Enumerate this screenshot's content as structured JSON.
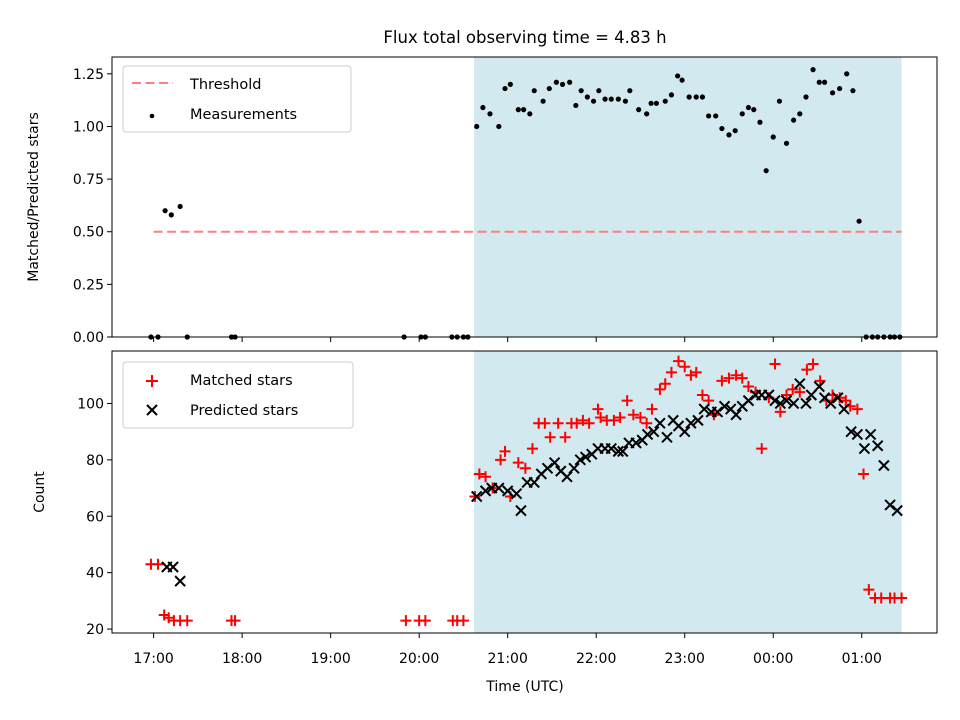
{
  "title": "Flux total observing time = 4.83 h",
  "x_ticks": [
    {
      "t": 17.0,
      "label": "17:00"
    },
    {
      "t": 18.0,
      "label": "18:00"
    },
    {
      "t": 19.0,
      "label": "19:00"
    },
    {
      "t": 20.0,
      "label": "20:00"
    },
    {
      "t": 21.0,
      "label": "21:00"
    },
    {
      "t": 22.0,
      "label": "22:00"
    },
    {
      "t": 23.0,
      "label": "23:00"
    },
    {
      "t": 24.0,
      "label": "00:00"
    },
    {
      "t": 25.0,
      "label": "01:00"
    }
  ],
  "colors": {
    "threshold": "#ff7f7f",
    "measure": "#000000",
    "matched": "#ff0000",
    "predicted": "#000000",
    "shade": "#d2e9f0"
  },
  "chart_data": [
    {
      "type": "scatter",
      "ylabel": "Matched/Predicted stars",
      "xlim": [
        16.53,
        25.85
      ],
      "ylim": [
        0.0,
        1.33
      ],
      "yticks": [
        0.0,
        0.25,
        0.5,
        0.75,
        1.0,
        1.25
      ],
      "ytick_labels": [
        "0.00",
        "0.25",
        "0.50",
        "0.75",
        "1.00",
        "1.25"
      ],
      "shaded_region": [
        20.62,
        25.45
      ],
      "threshold": {
        "name": "Threshold",
        "y": 0.5,
        "x": [
          17.0,
          25.45
        ]
      },
      "legend": [
        "Threshold",
        "Measurements"
      ],
      "series": [
        {
          "name": "Measurements",
          "x": [
            16.97,
            17.05,
            17.13,
            17.2,
            17.3,
            17.38,
            17.88,
            17.92,
            19.83,
            20.02,
            20.07,
            20.37,
            20.43,
            20.5,
            20.55,
            20.65,
            20.72,
            20.8,
            20.9,
            20.97,
            21.03,
            21.12,
            21.18,
            21.25,
            21.3,
            21.4,
            21.47,
            21.55,
            21.62,
            21.7,
            21.77,
            21.83,
            21.9,
            21.97,
            22.03,
            22.1,
            22.17,
            22.25,
            22.33,
            22.38,
            22.48,
            22.57,
            22.62,
            22.68,
            22.78,
            22.85,
            22.92,
            22.97,
            23.05,
            23.13,
            23.2,
            23.27,
            23.35,
            23.42,
            23.5,
            23.57,
            23.65,
            23.72,
            23.78,
            23.85,
            23.92,
            24.0,
            24.07,
            24.15,
            24.23,
            24.3,
            24.37,
            24.45,
            24.52,
            24.58,
            24.67,
            24.75,
            24.83,
            24.9,
            24.97,
            25.05,
            25.12,
            25.18,
            25.25,
            25.32,
            25.37,
            25.43,
            25.52
          ],
          "y": [
            0.0,
            0.0,
            0.6,
            0.58,
            0.62,
            0.0,
            0.0,
            0.0,
            0.0,
            0.0,
            0.0,
            0.0,
            0.0,
            0.0,
            0.0,
            1.0,
            1.09,
            1.06,
            1.0,
            1.18,
            1.2,
            1.08,
            1.08,
            1.06,
            1.17,
            1.12,
            1.18,
            1.21,
            1.2,
            1.21,
            1.1,
            1.17,
            1.14,
            1.12,
            1.17,
            1.13,
            1.13,
            1.13,
            1.12,
            1.17,
            1.08,
            1.06,
            1.11,
            1.11,
            1.12,
            1.15,
            1.24,
            1.22,
            1.14,
            1.14,
            1.14,
            1.05,
            1.05,
            0.99,
            0.96,
            0.98,
            1.06,
            1.09,
            1.08,
            1.02,
            0.79,
            0.95,
            1.12,
            0.92,
            1.03,
            1.06,
            1.14,
            1.27,
            1.21,
            1.21,
            1.16,
            1.18,
            1.25,
            1.17,
            0.55,
            0.0,
            0.0,
            0.0,
            0.0,
            0.0,
            0.0,
            0.0,
            0.0
          ]
        }
      ]
    },
    {
      "type": "scatter",
      "xlabel": "Time (UTC)",
      "ylabel": "Count",
      "xlim": [
        16.53,
        25.85
      ],
      "ylim": [
        18.6,
        118.6
      ],
      "yticks": [
        20,
        40,
        60,
        80,
        100
      ],
      "ytick_labels": [
        "20",
        "40",
        "60",
        "80",
        "100"
      ],
      "shaded_region": [
        20.62,
        25.45
      ],
      "legend": [
        "Matched stars",
        "Predicted stars"
      ],
      "series": [
        {
          "name": "Matched stars",
          "x": [
            16.97,
            17.05,
            17.12,
            17.17,
            17.23,
            17.3,
            17.38,
            17.88,
            17.92,
            19.85,
            20.0,
            20.07,
            20.38,
            20.43,
            20.5,
            20.63,
            20.68,
            20.75,
            20.83,
            20.92,
            20.97,
            21.03,
            21.12,
            21.2,
            21.28,
            21.35,
            21.42,
            21.48,
            21.57,
            21.65,
            21.72,
            21.78,
            21.85,
            21.92,
            22.02,
            22.05,
            22.12,
            22.2,
            22.27,
            22.35,
            22.42,
            22.5,
            22.57,
            22.63,
            22.72,
            22.78,
            22.85,
            22.93,
            23.0,
            23.07,
            23.13,
            23.2,
            23.27,
            23.33,
            23.42,
            23.5,
            23.58,
            23.65,
            23.72,
            23.8,
            23.87,
            23.95,
            24.02,
            24.08,
            24.15,
            24.22,
            24.3,
            24.38,
            24.45,
            24.53,
            24.6,
            24.67,
            24.75,
            24.82,
            24.87,
            24.95,
            25.02,
            25.08,
            25.15,
            25.22,
            25.32,
            25.37,
            25.45
          ],
          "y": [
            43,
            43,
            25,
            24,
            23,
            23,
            23,
            23,
            23,
            23,
            23,
            23,
            23,
            23,
            23,
            67,
            75,
            74,
            70,
            80,
            83,
            67,
            79,
            77,
            84,
            93,
            93,
            88,
            93,
            88,
            93,
            93,
            94,
            93,
            98,
            95,
            94,
            94,
            95,
            101,
            96,
            95,
            93,
            98,
            105,
            107,
            111,
            115,
            113,
            110,
            111,
            103,
            101,
            96,
            108,
            109,
            110,
            109,
            106,
            104,
            84,
            102,
            114,
            97,
            103,
            105,
            104,
            112,
            114,
            108,
            101,
            103,
            102,
            101,
            99,
            98,
            75,
            34,
            31,
            31,
            31,
            31,
            31
          ]
        },
        {
          "name": "Predicted stars",
          "x": [
            17.15,
            17.22,
            17.3,
            20.65,
            20.75,
            20.82,
            20.9,
            21.0,
            21.1,
            21.15,
            21.22,
            21.3,
            21.38,
            21.45,
            21.53,
            21.6,
            21.67,
            21.75,
            21.82,
            21.88,
            21.95,
            22.02,
            22.1,
            22.17,
            22.25,
            22.3,
            22.37,
            22.45,
            22.52,
            22.58,
            22.65,
            22.72,
            22.8,
            22.87,
            22.93,
            23.0,
            23.07,
            23.15,
            23.22,
            23.3,
            23.37,
            23.45,
            23.52,
            23.58,
            23.65,
            23.72,
            23.8,
            23.87,
            23.95,
            24.02,
            24.08,
            24.15,
            24.23,
            24.3,
            24.37,
            24.43,
            24.52,
            24.58,
            24.65,
            24.73,
            24.8,
            24.88,
            24.95,
            25.03,
            25.1,
            25.18,
            25.25,
            25.32,
            25.4
          ],
          "y": [
            42,
            42,
            37,
            67,
            69,
            70,
            70,
            69,
            68,
            62,
            72,
            72,
            75,
            77,
            79,
            76,
            74,
            77,
            80,
            81,
            82,
            84,
            84,
            84,
            83,
            83,
            86,
            86,
            87,
            89,
            90,
            93,
            88,
            94,
            92,
            90,
            93,
            94,
            98,
            97,
            97,
            99,
            98,
            96,
            99,
            101,
            103,
            103,
            103,
            101,
            100,
            101,
            100,
            107,
            100,
            103,
            106,
            102,
            100,
            102,
            98,
            90,
            89,
            84,
            89,
            85,
            78,
            64,
            62
          ]
        }
      ]
    }
  ]
}
